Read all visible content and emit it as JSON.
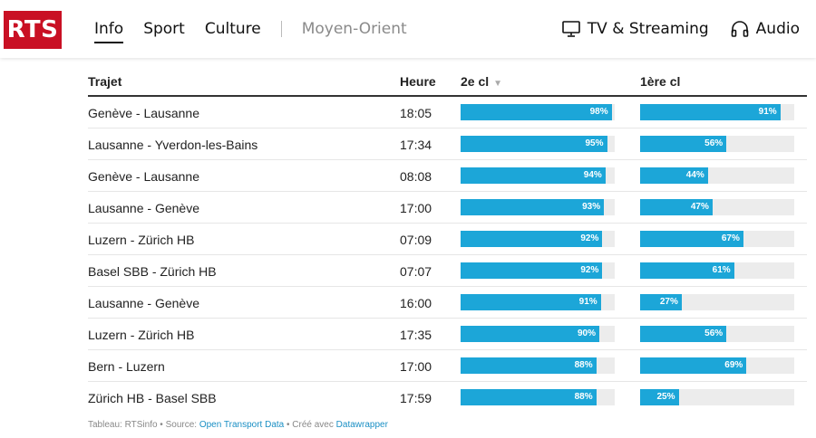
{
  "header": {
    "logo": "RTS",
    "nav": [
      {
        "label": "Info",
        "active": true
      },
      {
        "label": "Sport",
        "active": false
      },
      {
        "label": "Culture",
        "active": false
      }
    ],
    "nav_muted": "Moyen-Orient",
    "right": [
      {
        "label": "TV & Streaming",
        "icon": "tv-icon"
      },
      {
        "label": "Audio",
        "icon": "headphones-icon"
      }
    ]
  },
  "table": {
    "columns": {
      "route": "Trajet",
      "time": "Heure",
      "second": "2e cl",
      "first": "1ère cl"
    },
    "sorted_column": "2e cl",
    "bar_color": "#1ca6d8",
    "rows": [
      {
        "route": "Genève - Lausanne",
        "time": "18:05",
        "second": 98,
        "second_label": "98%",
        "first": 91,
        "first_label": "91%"
      },
      {
        "route": "Lausanne - Yverdon-les-Bains",
        "time": "17:34",
        "second": 95,
        "second_label": "95%",
        "first": 56,
        "first_label": "56%"
      },
      {
        "route": "Genève - Lausanne",
        "time": "08:08",
        "second": 94,
        "second_label": "94%",
        "first": 44,
        "first_label": "44%"
      },
      {
        "route": "Lausanne - Genève",
        "time": "17:00",
        "second": 93,
        "second_label": "93%",
        "first": 47,
        "first_label": "47%"
      },
      {
        "route": "Luzern - Zürich HB",
        "time": "07:09",
        "second": 92,
        "second_label": "92%",
        "first": 67,
        "first_label": "67%"
      },
      {
        "route": "Basel SBB - Zürich HB",
        "time": "07:07",
        "second": 92,
        "second_label": "92%",
        "first": 61,
        "first_label": "61%"
      },
      {
        "route": "Lausanne - Genève",
        "time": "16:00",
        "second": 91,
        "second_label": "91%",
        "first": 27,
        "first_label": "27%"
      },
      {
        "route": "Luzern - Zürich HB",
        "time": "17:35",
        "second": 90,
        "second_label": "90%",
        "first": 56,
        "first_label": "56%"
      },
      {
        "route": "Bern - Luzern",
        "time": "17:00",
        "second": 88,
        "second_label": "88%",
        "first": 69,
        "first_label": "69%"
      },
      {
        "route": "Zürich HB - Basel SBB",
        "time": "17:59",
        "second": 88,
        "second_label": "88%",
        "first": 25,
        "first_label": "25%"
      }
    ]
  },
  "footer": {
    "prefix": "Tableau: RTSinfo",
    "source_label": " • Source: ",
    "source_link": "Open Transport Data",
    "created_label": " • Créé avec ",
    "created_link": "Datawrapper"
  }
}
